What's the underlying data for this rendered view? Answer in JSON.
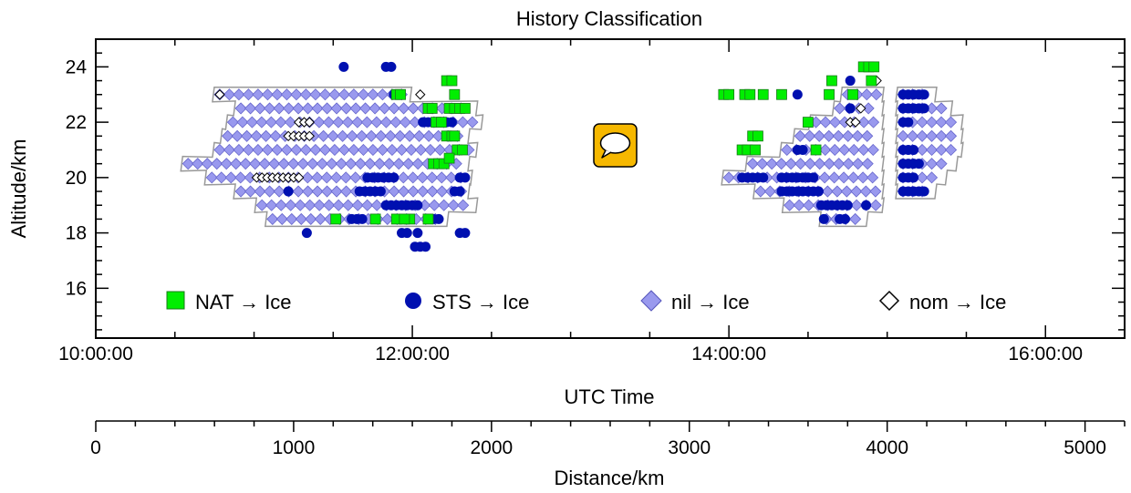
{
  "chart_data": {
    "type": "scatter",
    "title": "History Classification",
    "xlabel": "UTC Time",
    "ylabel": "Altitude/km",
    "x2label": "Distance/km",
    "xlim": [
      "10:00:00",
      "16:30:00"
    ],
    "ylim": [
      14.2,
      25
    ],
    "x_ticks": [
      "10:00:00",
      "12:00:00",
      "14:00:00",
      "16:00:00"
    ],
    "y_ticks": [
      "16",
      "18",
      "20",
      "22",
      "24"
    ],
    "x2_ticks": [
      "0",
      "1000",
      "2000",
      "3000",
      "4000",
      "5000"
    ],
    "x2lim": [
      0,
      5200
    ],
    "legend_position": "bottom-inside",
    "series": [
      {
        "name": "NAT → Ice",
        "marker": "square",
        "color": "#00ee00"
      },
      {
        "name": "STS → Ice",
        "marker": "circle",
        "color": "#0010b0"
      },
      {
        "name": "nil → Ice",
        "marker": "diamond",
        "color": "#9999ee"
      },
      {
        "name": "nom → Ice",
        "marker": "open-diamond",
        "color": "#000000"
      }
    ],
    "bands": [
      {
        "altitude": 23.0,
        "start": "10:47:00",
        "end": "11:57:00"
      },
      {
        "altitude": 22.5,
        "start": "10:55:00",
        "end": "12:22:00"
      },
      {
        "altitude": 22.0,
        "start": "10:52:00",
        "end": "12:24:00"
      },
      {
        "altitude": 21.5,
        "start": "10:50:00",
        "end": "12:19:00"
      },
      {
        "altitude": 21.0,
        "start": "10:47:00",
        "end": "12:22:00"
      },
      {
        "altitude": 20.5,
        "start": "10:35:00",
        "end": "12:19:00"
      },
      {
        "altitude": 20.0,
        "start": "10:44:00",
        "end": "12:20:00"
      },
      {
        "altitude": 19.5,
        "start": "10:55:00",
        "end": "12:19:00"
      },
      {
        "altitude": 19.0,
        "start": "11:03:00",
        "end": "12:22:00"
      },
      {
        "altitude": 18.5,
        "start": "11:07:00",
        "end": "12:11:00"
      },
      {
        "altitude": 23.0,
        "start": "14:45:00",
        "end": "14:56:00"
      },
      {
        "altitude": 22.5,
        "start": "14:42:00",
        "end": "14:56:00"
      },
      {
        "altitude": 22.0,
        "start": "14:33:00",
        "end": "14:56:00"
      },
      {
        "altitude": 21.5,
        "start": "14:27:00",
        "end": "14:56:00"
      },
      {
        "altitude": 21.0,
        "start": "14:22:00",
        "end": "14:56:00"
      },
      {
        "altitude": 20.5,
        "start": "14:09:00",
        "end": "14:56:00"
      },
      {
        "altitude": 20.0,
        "start": "14:00:00",
        "end": "14:56:00"
      },
      {
        "altitude": 19.5,
        "start": "14:12:00",
        "end": "14:56:00"
      },
      {
        "altitude": 19.0,
        "start": "14:23:00",
        "end": "14:56:00"
      },
      {
        "altitude": 18.5,
        "start": "14:37:00",
        "end": "14:50:00"
      },
      {
        "altitude": 23.0,
        "start": "15:06:00",
        "end": "15:16:00"
      },
      {
        "altitude": 22.5,
        "start": "15:06:00",
        "end": "15:22:00"
      },
      {
        "altitude": 22.0,
        "start": "15:06:00",
        "end": "15:26:00"
      },
      {
        "altitude": 21.5,
        "start": "15:06:00",
        "end": "15:26:00"
      },
      {
        "altitude": 21.0,
        "start": "15:06:00",
        "end": "15:26:00"
      },
      {
        "altitude": 20.5,
        "start": "15:06:00",
        "end": "15:24:00"
      },
      {
        "altitude": 20.0,
        "start": "15:06:00",
        "end": "15:20:00"
      },
      {
        "altitude": 19.5,
        "start": "15:06:00",
        "end": "15:16:00"
      }
    ],
    "points": {
      "NAT → Ice": [
        [
          "11:54:00",
          23.0
        ],
        [
          "11:55:30",
          23.0
        ],
        [
          "12:06:00",
          22.5
        ],
        [
          "12:07:30",
          22.5
        ],
        [
          "12:09:00",
          22.0
        ],
        [
          "12:11:00",
          22.0
        ],
        [
          "12:13:00",
          21.5
        ],
        [
          "12:15:00",
          21.5
        ],
        [
          "12:16:00",
          21.5
        ],
        [
          "12:08:00",
          20.5
        ],
        [
          "12:10:00",
          20.5
        ],
        [
          "12:12:00",
          20.5
        ],
        [
          "12:17:00",
          21.0
        ],
        [
          "12:19:00",
          21.0
        ],
        [
          "12:14:00",
          22.5
        ],
        [
          "12:16:00",
          22.5
        ],
        [
          "12:18:00",
          22.5
        ],
        [
          "12:20:00",
          22.5
        ],
        [
          "12:13:00",
          23.5
        ],
        [
          "12:15:00",
          23.5
        ],
        [
          "12:16:00",
          23.0
        ],
        [
          "11:46:00",
          18.5
        ],
        [
          "11:54:00",
          18.5
        ],
        [
          "11:59:00",
          18.5
        ],
        [
          "11:31:00",
          18.5
        ],
        [
          "11:57:00",
          18.5
        ],
        [
          "12:06:00",
          18.5
        ],
        [
          "12:14:00",
          20.7
        ],
        [
          "13:58:00",
          23.0
        ],
        [
          "14:00:00",
          23.0
        ],
        [
          "14:06:00",
          23.0
        ],
        [
          "14:08:00",
          23.0
        ],
        [
          "14:13:00",
          23.0
        ],
        [
          "14:20:00",
          23.0
        ],
        [
          "14:09:00",
          21.5
        ],
        [
          "14:11:00",
          21.5
        ],
        [
          "14:05:00",
          21.0
        ],
        [
          "14:07:00",
          21.0
        ],
        [
          "14:10:00",
          21.0
        ],
        [
          "14:33:00",
          21.0
        ],
        [
          "14:30:00",
          22.0
        ],
        [
          "14:38:00",
          23.0
        ],
        [
          "14:39:00",
          23.5
        ],
        [
          "14:47:00",
          23.0
        ],
        [
          "14:51:00",
          24.0
        ],
        [
          "14:53:00",
          24.0
        ],
        [
          "14:55:00",
          24.0
        ],
        [
          "14:54:00",
          23.5
        ]
      ],
      "STS → Ice": [
        [
          "11:34:00",
          24.0
        ],
        [
          "11:50:00",
          24.0
        ],
        [
          "11:52:00",
          24.0
        ],
        [
          "11:53:00",
          23.0
        ],
        [
          "12:13:00",
          22.0
        ],
        [
          "12:15:00",
          22.0
        ],
        [
          "12:04:00",
          22.0
        ],
        [
          "12:06:00",
          22.0
        ],
        [
          "11:43:00",
          20.0
        ],
        [
          "11:45:00",
          20.0
        ],
        [
          "11:47:00",
          20.0
        ],
        [
          "11:49:00",
          20.0
        ],
        [
          "11:51:00",
          20.0
        ],
        [
          "11:53:00",
          20.0
        ],
        [
          "12:18:00",
          20.0
        ],
        [
          "12:20:00",
          20.0
        ],
        [
          "11:40:00",
          19.5
        ],
        [
          "11:42:00",
          19.5
        ],
        [
          "11:44:00",
          19.5
        ],
        [
          "11:46:00",
          19.5
        ],
        [
          "11:48:00",
          19.5
        ],
        [
          "12:16:00",
          19.5
        ],
        [
          "12:18:00",
          19.5
        ],
        [
          "11:50:00",
          19.0
        ],
        [
          "11:52:00",
          19.0
        ],
        [
          "11:54:00",
          19.0
        ],
        [
          "11:56:00",
          19.0
        ],
        [
          "11:58:00",
          19.0
        ],
        [
          "12:00:00",
          19.0
        ],
        [
          "12:02:00",
          19.0
        ],
        [
          "11:37:00",
          18.5
        ],
        [
          "11:39:00",
          18.5
        ],
        [
          "11:41:00",
          18.5
        ],
        [
          "12:08:00",
          18.5
        ],
        [
          "12:10:00",
          18.5
        ],
        [
          "11:56:00",
          18.0
        ],
        [
          "11:58:00",
          18.0
        ],
        [
          "12:02:00",
          18.0
        ],
        [
          "12:18:00",
          18.0
        ],
        [
          "12:20:00",
          18.0
        ],
        [
          "12:01:00",
          17.5
        ],
        [
          "12:03:00",
          17.5
        ],
        [
          "12:05:00",
          17.5
        ],
        [
          "11:13:00",
          19.5
        ],
        [
          "11:20:00",
          18.0
        ],
        [
          "14:05:00",
          20.0
        ],
        [
          "14:07:00",
          20.0
        ],
        [
          "14:09:00",
          20.0
        ],
        [
          "14:11:00",
          20.0
        ],
        [
          "14:13:00",
          20.0
        ],
        [
          "14:20:00",
          20.0
        ],
        [
          "14:22:00",
          20.0
        ],
        [
          "14:24:00",
          20.0
        ],
        [
          "14:26:00",
          20.0
        ],
        [
          "14:28:00",
          20.0
        ],
        [
          "14:30:00",
          20.0
        ],
        [
          "14:32:00",
          20.0
        ],
        [
          "14:20:00",
          19.5
        ],
        [
          "14:22:00",
          19.5
        ],
        [
          "14:24:00",
          19.5
        ],
        [
          "14:26:00",
          19.5
        ],
        [
          "14:28:00",
          19.5
        ],
        [
          "14:30:00",
          19.5
        ],
        [
          "14:32:00",
          19.5
        ],
        [
          "14:34:00",
          19.5
        ],
        [
          "14:35:00",
          19.0
        ],
        [
          "14:37:00",
          19.0
        ],
        [
          "14:39:00",
          19.0
        ],
        [
          "14:41:00",
          19.0
        ],
        [
          "14:43:00",
          19.0
        ],
        [
          "14:45:00",
          19.0
        ],
        [
          "14:36:00",
          18.5
        ],
        [
          "14:44:00",
          18.5
        ],
        [
          "14:42:00",
          18.5
        ],
        [
          "14:52:00",
          19.0
        ],
        [
          "14:28:00",
          21.0
        ],
        [
          "14:26:00",
          21.0
        ],
        [
          "14:46:00",
          22.5
        ],
        [
          "14:46:00",
          23.5
        ],
        [
          "14:20:00",
          23.0
        ],
        [
          "14:26:00",
          23.0
        ],
        [
          "15:06:00",
          23.0
        ],
        [
          "15:08:00",
          23.0
        ],
        [
          "15:10:00",
          23.0
        ],
        [
          "15:12:00",
          23.0
        ],
        [
          "15:14:00",
          23.0
        ],
        [
          "15:06:00",
          22.5
        ],
        [
          "15:08:00",
          22.5
        ],
        [
          "15:10:00",
          22.5
        ],
        [
          "15:12:00",
          22.5
        ],
        [
          "15:14:00",
          22.5
        ],
        [
          "15:06:00",
          21.0
        ],
        [
          "15:08:00",
          21.0
        ],
        [
          "15:10:00",
          21.0
        ],
        [
          "15:06:00",
          20.5
        ],
        [
          "15:08:00",
          20.5
        ],
        [
          "15:10:00",
          20.5
        ],
        [
          "15:12:00",
          20.5
        ],
        [
          "15:06:00",
          20.0
        ],
        [
          "15:08:00",
          20.0
        ],
        [
          "15:10:00",
          20.0
        ],
        [
          "15:06:00",
          19.5
        ],
        [
          "15:08:00",
          19.5
        ],
        [
          "15:10:00",
          19.5
        ],
        [
          "15:12:00",
          19.5
        ],
        [
          "15:14:00",
          19.5
        ],
        [
          "15:06:00",
          22.0
        ],
        [
          "15:08:00",
          22.0
        ]
      ],
      "nom → Ice": [
        [
          "10:47:00",
          23.0
        ],
        [
          "11:17:00",
          22.0
        ],
        [
          "11:19:00",
          22.0
        ],
        [
          "11:21:00",
          22.0
        ],
        [
          "11:13:00",
          21.5
        ],
        [
          "11:15:00",
          21.5
        ],
        [
          "11:17:00",
          21.5
        ],
        [
          "11:19:00",
          21.5
        ],
        [
          "11:21:00",
          21.5
        ],
        [
          "11:01:00",
          20.0
        ],
        [
          "11:03:00",
          20.0
        ],
        [
          "11:05:00",
          20.0
        ],
        [
          "11:07:00",
          20.0
        ],
        [
          "11:09:00",
          20.0
        ],
        [
          "11:11:00",
          20.0
        ],
        [
          "11:13:00",
          20.0
        ],
        [
          "11:15:00",
          20.0
        ],
        [
          "11:17:00",
          20.0
        ],
        [
          "11:56:00",
          18.5
        ],
        [
          "11:58:00",
          18.5
        ],
        [
          "12:03:00",
          23.0
        ],
        [
          "14:46:00",
          22.0
        ],
        [
          "14:48:00",
          22.0
        ],
        [
          "14:50:00",
          22.5
        ],
        [
          "14:56:00",
          23.5
        ],
        [
          "14:54:00",
          23.5
        ]
      ]
    }
  },
  "overlay_icon": "speech-bubble-icon"
}
